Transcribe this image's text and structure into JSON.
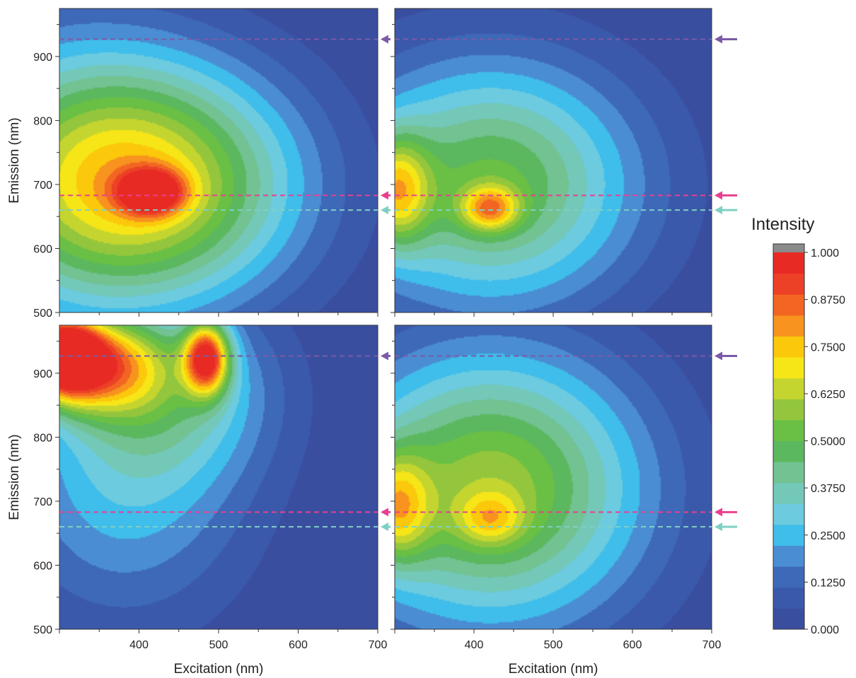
{
  "chart_data": {
    "type": "heatmap",
    "title": "",
    "panels": [
      {
        "position": "top-left",
        "xlabel": "",
        "ylabel": "Emission (nm)",
        "xlim": [
          300,
          700
        ],
        "ylim": [
          500,
          975
        ],
        "peaks": [
          {
            "x": 415,
            "y": 688,
            "sx": 28,
            "sy": 24,
            "amp": 0.52
          },
          {
            "x": 420,
            "y": 700,
            "sx": 130,
            "sy": 130,
            "amp": 0.6
          },
          {
            "x": 300,
            "y": 720,
            "sx": 120,
            "sy": 160,
            "amp": 0.28
          }
        ]
      },
      {
        "position": "top-right",
        "xlabel": "",
        "ylabel": "",
        "xlim": [
          300,
          700
        ],
        "ylim": [
          500,
          975
        ],
        "peaks": [
          {
            "x": 420,
            "y": 662,
            "sx": 25,
            "sy": 24,
            "amp": 0.38
          },
          {
            "x": 420,
            "y": 700,
            "sx": 130,
            "sy": 135,
            "amp": 0.52
          },
          {
            "x": 300,
            "y": 690,
            "sx": 30,
            "sy": 60,
            "amp": 0.45
          }
        ]
      },
      {
        "position": "bottom-left",
        "xlabel": "Excitation (nm)",
        "ylabel": "Emission (nm)",
        "xlim": [
          300,
          700
        ],
        "ylim": [
          500,
          975
        ],
        "peaks": [
          {
            "x": 300,
            "y": 930,
            "sx": 35,
            "sy": 45,
            "amp": 0.95
          },
          {
            "x": 355,
            "y": 915,
            "sx": 55,
            "sy": 55,
            "amp": 0.55
          },
          {
            "x": 485,
            "y": 925,
            "sx": 20,
            "sy": 40,
            "amp": 0.75
          },
          {
            "x": 440,
            "y": 880,
            "sx": 90,
            "sy": 100,
            "amp": 0.3
          },
          {
            "x": 380,
            "y": 720,
            "sx": 110,
            "sy": 150,
            "amp": 0.24
          }
        ]
      },
      {
        "position": "bottom-right",
        "xlabel": "Excitation (nm)",
        "ylabel": "",
        "xlim": [
          300,
          700
        ],
        "ylim": [
          500,
          975
        ],
        "peaks": [
          {
            "x": 420,
            "y": 672,
            "sx": 28,
            "sy": 28,
            "amp": 0.22
          },
          {
            "x": 420,
            "y": 720,
            "sx": 135,
            "sy": 150,
            "amp": 0.6
          },
          {
            "x": 300,
            "y": 690,
            "sx": 30,
            "sy": 60,
            "amp": 0.4
          }
        ]
      }
    ],
    "xticks": [
      400,
      500,
      600,
      700
    ],
    "yticks": [
      500,
      600,
      700,
      800,
      900
    ],
    "reference_lines": [
      {
        "y": 927,
        "color": "#7b5aa6"
      },
      {
        "y": 683,
        "color": "#e8408f"
      },
      {
        "y": 660,
        "color": "#7fd0c4"
      }
    ],
    "colorbar": {
      "title": "Intensity",
      "tick_labels": [
        "1.000",
        "0.8750",
        "0.7500",
        "0.6250",
        "0.5000",
        "0.3750",
        "0.2500",
        "0.1250",
        "0.000"
      ],
      "levels": [
        "#3a4ea0",
        "#3b59aa",
        "#3e68b8",
        "#4a8dd2",
        "#3fbdeb",
        "#6ccbdf",
        "#73c8b8",
        "#72c292",
        "#5bb85f",
        "#6abf45",
        "#93c63c",
        "#c5d52f",
        "#f6e617",
        "#fbc80c",
        "#f7931e",
        "#f26522",
        "#ec4027",
        "#e82a24",
        "#8b8b8b"
      ]
    }
  }
}
